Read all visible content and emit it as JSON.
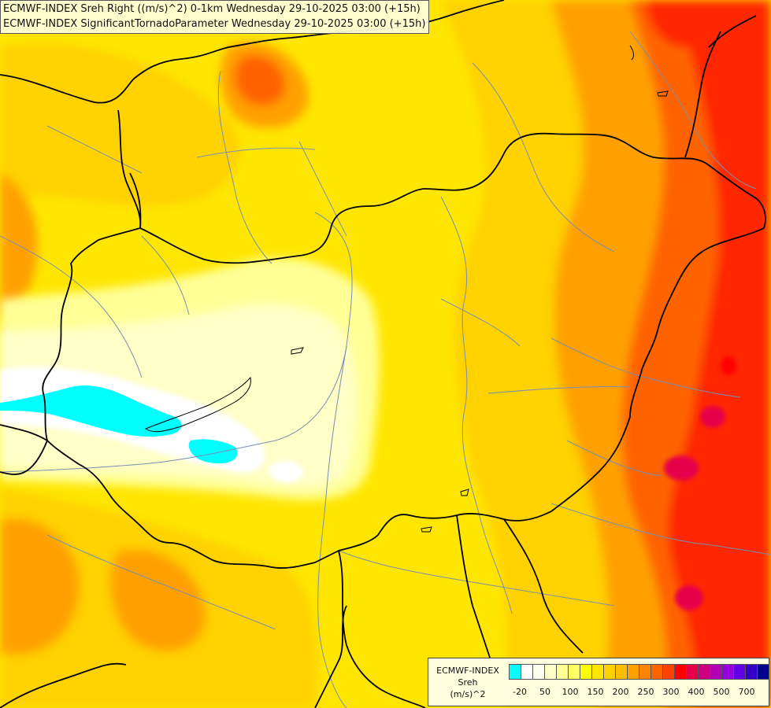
{
  "title": {
    "line1": "ECMWF-INDEX Sreh Right ((m/s)^2) 0-1km Wednesday 29-10-2025 03:00 (+15h)",
    "line2": "ECMWF-INDEX SignificantTornadoParameter Wednesday 29-10-2025 03:00 (+15h)"
  },
  "legend": {
    "line1": "ECMWF-INDEX",
    "line2": "Sreh",
    "line3": "(m/s)^2",
    "colors": [
      "#00ffff",
      "#ffffff",
      "#fffff0",
      "#ffffc8",
      "#ffff96",
      "#ffff64",
      "#ffff00",
      "#ffe600",
      "#ffd200",
      "#ffbe00",
      "#ffa000",
      "#ff8200",
      "#ff6400",
      "#ff4100",
      "#ff0000",
      "#e6004b",
      "#cd0082",
      "#b400b4",
      "#9600dc",
      "#6400e6",
      "#3200c8",
      "#00008c"
    ],
    "ticks": [
      "-20",
      "50",
      "100",
      "150",
      "200",
      "250",
      "300",
      "400",
      "500",
      "700"
    ]
  },
  "colors": {
    "background": "#ffe600",
    "cyan": "#00ffff",
    "white": "#ffffff",
    "pale": "#ffffc8",
    "yellow": "#ffff00",
    "gold": "#ffd200",
    "orange": "#ffa000",
    "dark_orange": "#ff6400",
    "red": "#ff2800",
    "magenta": "#e6004b",
    "border_line": "#000000",
    "river_line": "#7a8fb0"
  }
}
